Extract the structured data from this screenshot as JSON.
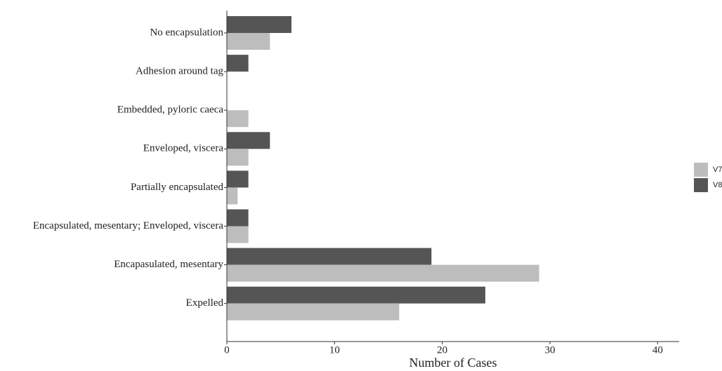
{
  "chart_data": {
    "type": "barh",
    "x_label": "Number of Cases",
    "categories": [
      "No encapsulation",
      "Adhesion around tag",
      "Embedded, pyloric caeca",
      "Enveloped, viscera",
      "Partially encapsulated",
      "Encapsulated, mesentary; Enveloped, viscera",
      "Encapasulated, mesentary",
      "Expelled"
    ],
    "series": [
      {
        "name": "V7",
        "color": "#bdbdbd",
        "values": [
          4,
          0,
          2,
          2,
          1,
          2,
          29,
          16
        ]
      },
      {
        "name": "V8",
        "color": "#555555",
        "values": [
          6,
          2,
          0,
          4,
          2,
          2,
          19,
          24
        ]
      }
    ],
    "xlim": [
      0,
      42
    ],
    "xticks": [
      0,
      10,
      20,
      30,
      40
    ]
  }
}
